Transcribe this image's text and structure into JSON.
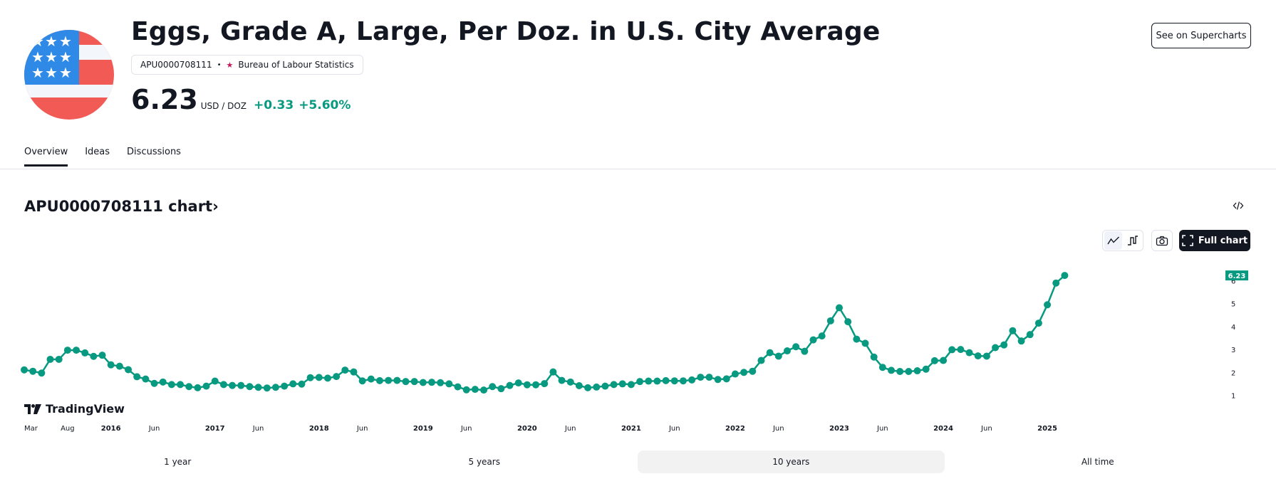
{
  "header": {
    "title": "Eggs, Grade A, Large, Per Doz. in U.S. City Average",
    "symbol": "APU0000708111",
    "separator": "•",
    "source": "Bureau of Labour Statistics",
    "price": "6.23",
    "unit": "USD / DOZ",
    "change": "+0.33",
    "change_percent": "+5.60%",
    "supercharts_button": "See on Supercharts",
    "flag_icon": "us-flag-icon",
    "colors": {
      "up": "#089981",
      "text": "#131722"
    }
  },
  "tabs": [
    {
      "label": "Overview",
      "active": true
    },
    {
      "label": "Ideas",
      "active": false
    },
    {
      "label": "Discussions",
      "active": false
    }
  ],
  "chart_section": {
    "title": "APU0000708111 chart",
    "title_chevron": "›",
    "embed_icon": "code-embed-icon",
    "toolbar": {
      "line_style_icon": "line-chart-icon",
      "step_style_icon": "step-line-icon",
      "snapshot_icon": "camera-icon",
      "full_chart_label": "Full chart",
      "full_chart_icon": "fullscreen-icon"
    },
    "brand": "TradingView",
    "last_value_badge": "6.23"
  },
  "ranges": [
    {
      "label": "1 year",
      "active": false
    },
    {
      "label": "5 years",
      "active": false
    },
    {
      "label": "10 years",
      "active": true
    },
    {
      "label": "All time",
      "active": false
    }
  ],
  "chart_data": {
    "type": "line",
    "title": "APU0000708111",
    "series": [
      {
        "name": "Eggs, Grade A, Large, Per Doz. (USD)",
        "color": "#089981",
        "start": "2015-03",
        "frequency": "monthly",
        "values": [
          2.11,
          2.05,
          1.97,
          2.57,
          2.57,
          2.97,
          2.97,
          2.85,
          2.7,
          2.75,
          2.33,
          2.27,
          2.12,
          1.81,
          1.71,
          1.52,
          1.58,
          1.47,
          1.47,
          1.38,
          1.33,
          1.4,
          1.62,
          1.47,
          1.43,
          1.43,
          1.38,
          1.35,
          1.32,
          1.35,
          1.4,
          1.5,
          1.49,
          1.77,
          1.78,
          1.75,
          1.82,
          2.1,
          2.02,
          1.63,
          1.71,
          1.64,
          1.65,
          1.65,
          1.6,
          1.6,
          1.56,
          1.57,
          1.55,
          1.5,
          1.37,
          1.24,
          1.26,
          1.23,
          1.38,
          1.29,
          1.43,
          1.54,
          1.46,
          1.46,
          1.51,
          2.02,
          1.65,
          1.58,
          1.42,
          1.33,
          1.36,
          1.4,
          1.47,
          1.5,
          1.47,
          1.6,
          1.62,
          1.62,
          1.64,
          1.63,
          1.63,
          1.67,
          1.79,
          1.79,
          1.69,
          1.72,
          1.93,
          2.0,
          2.05,
          2.52,
          2.86,
          2.71,
          2.94,
          3.12,
          2.92,
          3.42,
          3.59,
          4.25,
          4.82,
          4.21,
          3.45,
          3.27,
          2.67,
          2.22,
          2.09,
          2.04,
          2.04,
          2.07,
          2.14,
          2.51,
          2.52,
          2.99,
          3.0,
          2.86,
          2.72,
          2.71,
          3.08,
          3.2,
          3.82,
          3.37,
          3.65,
          4.15,
          4.95,
          5.9,
          6.23
        ]
      }
    ],
    "x_tick_labels": [
      "Mar",
      "Aug",
      "2016",
      "Jun",
      "2017",
      "Jun",
      "2018",
      "Jun",
      "2019",
      "Jun",
      "2020",
      "Jun",
      "2021",
      "Jun",
      "2022",
      "Jun",
      "2023",
      "Jun",
      "2024",
      "Jun",
      "2025"
    ],
    "x_ticks": [
      "2015-03",
      "2015-08",
      "2016-01",
      "2016-06",
      "2017-01",
      "2017-06",
      "2018-01",
      "2018-06",
      "2019-01",
      "2019-06",
      "2020-01",
      "2020-06",
      "2021-01",
      "2021-06",
      "2022-01",
      "2022-06",
      "2023-01",
      "2023-06",
      "2024-01",
      "2024-06",
      "2025-01"
    ],
    "y_ticks": [
      1,
      2,
      3,
      4,
      5,
      6
    ],
    "ylim": [
      0.55,
      6.45
    ],
    "last_value": 6.23,
    "xlabel": "",
    "ylabel": "",
    "grid": false,
    "legend": "none"
  }
}
